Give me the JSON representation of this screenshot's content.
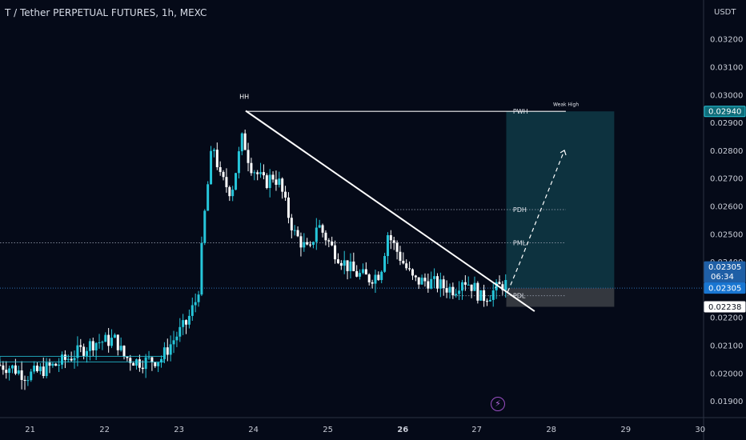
{
  "header": {
    "title": "T / Tether PERPETUAL FUTURES, 1h, MEXC"
  },
  "colors": {
    "background": "#050a18",
    "up_candle": "#26c6da",
    "down_candle": "#ffffff",
    "grid_text": "#c8ccd6",
    "current_price_tag": "#1976d2",
    "target_zone": "#0f3a46",
    "stop_zone": "#3a3d44",
    "accent_purple": "#9b4fc4"
  },
  "icons": {
    "bottom_marker": "lightning-bolt-icon"
  },
  "chart_data": {
    "type": "candlestick",
    "price_axis": {
      "unit_label": "USDT",
      "ylim": [
        0.0184,
        0.0334
      ],
      "ticks": [
        "0.03200",
        "0.03100",
        "0.03000",
        "0.02900",
        "0.02800",
        "0.02700",
        "0.02600",
        "0.02500",
        "0.02400",
        "0.02300",
        "0.02200",
        "0.02100",
        "0.02000",
        "0.01900"
      ]
    },
    "time_axis": {
      "xlim": [
        20.6,
        30.05
      ],
      "ticks": [
        {
          "value": 21,
          "label": "21",
          "bold": false
        },
        {
          "value": 22,
          "label": "22",
          "bold": false
        },
        {
          "value": 23,
          "label": "23",
          "bold": false
        },
        {
          "value": 24,
          "label": "24",
          "bold": false
        },
        {
          "value": 25,
          "label": "25",
          "bold": false
        },
        {
          "value": 26,
          "label": "26",
          "bold": true
        },
        {
          "value": 27,
          "label": "27",
          "bold": false
        },
        {
          "value": 28,
          "label": "28",
          "bold": false
        },
        {
          "value": 29,
          "label": "29",
          "bold": false
        },
        {
          "value": 30,
          "label": "30",
          "bold": false
        }
      ]
    },
    "anchors": [
      [
        20.6,
        0.0203
      ],
      [
        20.8,
        0.0202
      ],
      [
        21.0,
        0.0199
      ],
      [
        21.2,
        0.0201
      ],
      [
        21.4,
        0.0203
      ],
      [
        21.6,
        0.0206
      ],
      [
        21.9,
        0.0211
      ],
      [
        22.2,
        0.0212
      ],
      [
        22.3,
        0.0206
      ],
      [
        22.5,
        0.0204
      ],
      [
        22.8,
        0.0205
      ],
      [
        23.0,
        0.0213
      ],
      [
        23.15,
        0.0218
      ],
      [
        23.3,
        0.0228
      ],
      [
        23.4,
        0.026
      ],
      [
        23.5,
        0.0283
      ],
      [
        23.6,
        0.027
      ],
      [
        23.75,
        0.0265
      ],
      [
        23.9,
        0.0285
      ],
      [
        24.0,
        0.0275
      ],
      [
        24.2,
        0.0268
      ],
      [
        24.3,
        0.0271
      ],
      [
        24.4,
        0.0268
      ],
      [
        24.5,
        0.0258
      ],
      [
        24.6,
        0.025
      ],
      [
        24.8,
        0.0243
      ],
      [
        24.9,
        0.0254
      ],
      [
        25.1,
        0.0245
      ],
      [
        25.25,
        0.024
      ],
      [
        25.4,
        0.0236
      ],
      [
        25.6,
        0.0234
      ],
      [
        25.75,
        0.0236
      ],
      [
        25.85,
        0.025
      ],
      [
        25.95,
        0.0245
      ],
      [
        26.05,
        0.024
      ],
      [
        26.2,
        0.0233
      ],
      [
        26.4,
        0.0233
      ],
      [
        26.6,
        0.0231
      ],
      [
        26.75,
        0.023
      ],
      [
        26.85,
        0.0234
      ],
      [
        27.0,
        0.0231
      ],
      [
        27.1,
        0.0227
      ],
      [
        27.2,
        0.0228
      ],
      [
        27.4,
        0.0232
      ]
    ],
    "swing_labels": [
      {
        "text": "HH",
        "x": 23.88,
        "y": 0.02985
      }
    ],
    "trendline": {
      "from": [
        23.9,
        0.02942
      ],
      "to": [
        27.78,
        0.02222
      ]
    },
    "levels": [
      {
        "label": "PWH",
        "price": 0.0294,
        "x_start": 23.9,
        "x_end": 28.2
      },
      {
        "label": "PDH",
        "price": 0.02587,
        "x_start": 25.9,
        "x_end": 28.2
      },
      {
        "label": "PML",
        "price": 0.02468,
        "x_start": 20.6,
        "x_end": 28.2
      },
      {
        "label": "PDL",
        "price": 0.02278,
        "x_start": 26.7,
        "x_end": 28.2
      }
    ],
    "level_note": {
      "text": "Weak High",
      "x": 28.18,
      "price": 0.02968
    },
    "position_tool": {
      "x_start": 27.4,
      "x_end": 28.85,
      "entry": 0.02305,
      "target": 0.0294,
      "stop": 0.02238,
      "projection": [
        [
          27.42,
          0.02292
        ],
        [
          27.58,
          0.02395
        ],
        [
          28.18,
          0.028
        ]
      ],
      "pre_arrow": [
        [
          27.25,
          0.02305
        ],
        [
          27.32,
          0.02335
        ]
      ]
    },
    "price_tags": [
      {
        "value": "0.02940",
        "style": "teal"
      },
      {
        "value": "0.02364",
        "style": "gray"
      },
      {
        "value": "0.02305",
        "style": "blue",
        "countdown": "06:34"
      },
      {
        "value": "0.02305",
        "style": "blue-solid"
      },
      {
        "value": "0.02238",
        "style": "white"
      }
    ]
  }
}
